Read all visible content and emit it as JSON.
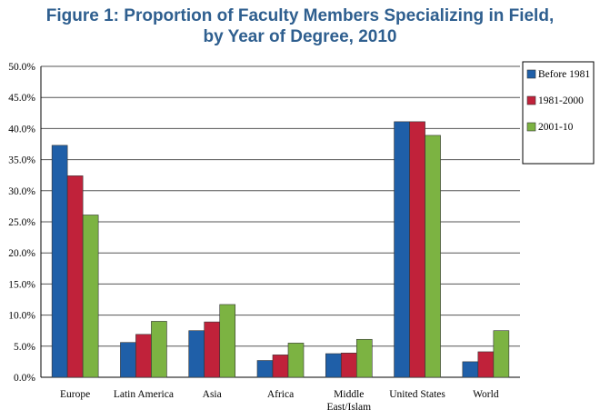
{
  "chart_data": {
    "type": "bar",
    "title_lines": [
      "Figure 1: Proportion of Faculty Members Specializing in Field,",
      "by Year of Degree, 2010"
    ],
    "categories": [
      [
        "Europe"
      ],
      [
        "Latin America"
      ],
      [
        "Asia"
      ],
      [
        "Africa"
      ],
      [
        "Middle",
        "East/Islam"
      ],
      [
        "United States"
      ],
      [
        "World"
      ]
    ],
    "series": [
      {
        "name": "Before 1981",
        "color": "#1f5fa8",
        "values": [
          37.3,
          5.6,
          7.5,
          2.7,
          3.8,
          41.1,
          2.5
        ]
      },
      {
        "name": "1981-2000",
        "color": "#c0223a",
        "values": [
          32.4,
          6.9,
          8.9,
          3.6,
          3.9,
          41.1,
          4.1
        ]
      },
      {
        "name": "2001-10",
        "color": "#7cb342",
        "values": [
          26.1,
          9.0,
          11.7,
          5.5,
          6.1,
          38.9,
          7.5
        ]
      }
    ],
    "ylim": [
      0,
      50
    ],
    "y_ticks": [
      "0.0%",
      "5.0%",
      "10.0%",
      "15.0%",
      "20.0%",
      "25.0%",
      "30.0%",
      "35.0%",
      "40.0%",
      "45.0%",
      "50.0%"
    ],
    "grid": true,
    "legend": "right"
  }
}
